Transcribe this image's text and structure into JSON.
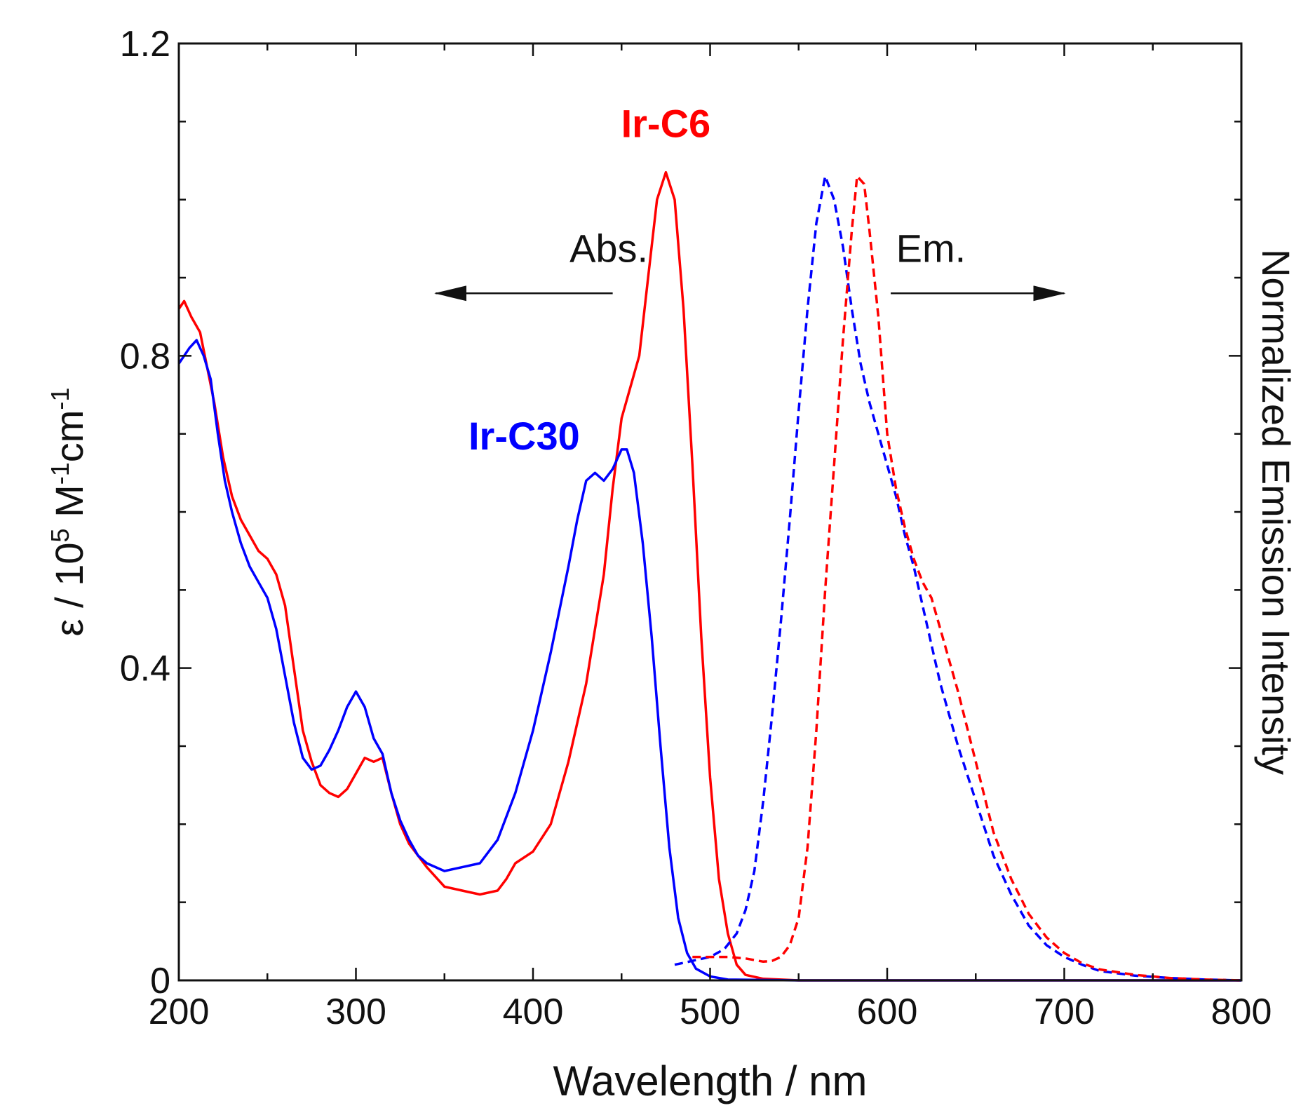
{
  "chart_data": {
    "type": "line",
    "title": "",
    "xlabel": "Wavelength / nm",
    "ylabel_parts": [
      "ε / 10",
      "5",
      " M",
      "-1",
      "cm",
      "-1"
    ],
    "y2label": "Normalized Emission Intensity",
    "xlim": [
      200,
      800
    ],
    "ylim": [
      0,
      1.2
    ],
    "y2lim": [
      0,
      1.2
    ],
    "grid": false,
    "x_ticks": [
      "200",
      "300",
      "400",
      "500",
      "600",
      "700",
      "800"
    ],
    "y_ticks": [
      "0",
      "0.4",
      "0.8",
      "1.2"
    ],
    "annotations": [
      {
        "text": "Abs.",
        "arrow": "left",
        "arrow_from": [
          445,
          0.88
        ],
        "arrow_to": [
          345,
          0.88
        ],
        "text_at": [
          465,
          0.92
        ]
      },
      {
        "text": "Em.",
        "arrow": "right",
        "arrow_from": [
          602,
          0.88
        ],
        "arrow_to": [
          700,
          0.88
        ],
        "text_at": [
          605,
          0.92
        ]
      }
    ],
    "series": [
      {
        "name": "Ir-C6 Abs.",
        "label": "Ir-C6",
        "color": "#ff0000",
        "style": "solid",
        "axis": "left",
        "label_at": [
          475,
          1.08
        ],
        "points": [
          [
            200,
            0.86
          ],
          [
            203,
            0.87
          ],
          [
            207,
            0.85
          ],
          [
            212,
            0.83
          ],
          [
            220,
            0.74
          ],
          [
            225,
            0.67
          ],
          [
            230,
            0.62
          ],
          [
            235,
            0.59
          ],
          [
            240,
            0.57
          ],
          [
            245,
            0.55
          ],
          [
            250,
            0.54
          ],
          [
            255,
            0.52
          ],
          [
            260,
            0.48
          ],
          [
            265,
            0.4
          ],
          [
            270,
            0.32
          ],
          [
            275,
            0.28
          ],
          [
            280,
            0.25
          ],
          [
            285,
            0.24
          ],
          [
            290,
            0.235
          ],
          [
            295,
            0.245
          ],
          [
            300,
            0.265
          ],
          [
            305,
            0.285
          ],
          [
            310,
            0.28
          ],
          [
            315,
            0.285
          ],
          [
            320,
            0.24
          ],
          [
            325,
            0.2
          ],
          [
            330,
            0.175
          ],
          [
            340,
            0.145
          ],
          [
            350,
            0.12
          ],
          [
            360,
            0.115
          ],
          [
            370,
            0.11
          ],
          [
            380,
            0.115
          ],
          [
            385,
            0.13
          ],
          [
            390,
            0.15
          ],
          [
            400,
            0.165
          ],
          [
            410,
            0.2
          ],
          [
            420,
            0.28
          ],
          [
            430,
            0.38
          ],
          [
            440,
            0.52
          ],
          [
            445,
            0.63
          ],
          [
            450,
            0.72
          ],
          [
            455,
            0.76
          ],
          [
            460,
            0.8
          ],
          [
            465,
            0.9
          ],
          [
            470,
            1.0
          ],
          [
            475,
            1.035
          ],
          [
            480,
            1.0
          ],
          [
            485,
            0.86
          ],
          [
            490,
            0.66
          ],
          [
            495,
            0.44
          ],
          [
            500,
            0.26
          ],
          [
            505,
            0.13
          ],
          [
            510,
            0.06
          ],
          [
            515,
            0.02
          ],
          [
            520,
            0.007
          ],
          [
            530,
            0.002
          ],
          [
            550,
            0.0
          ],
          [
            600,
            0.0
          ],
          [
            700,
            0.0
          ],
          [
            800,
            0.0
          ]
        ]
      },
      {
        "name": "Ir-C30 Abs.",
        "label": "Ir-C30",
        "color": "#0000ff",
        "style": "solid",
        "axis": "left",
        "label_at": [
          395,
          0.68
        ],
        "points": [
          [
            200,
            0.79
          ],
          [
            203,
            0.8
          ],
          [
            206,
            0.81
          ],
          [
            210,
            0.82
          ],
          [
            214,
            0.8
          ],
          [
            218,
            0.77
          ],
          [
            222,
            0.7
          ],
          [
            226,
            0.64
          ],
          [
            230,
            0.6
          ],
          [
            235,
            0.56
          ],
          [
            240,
            0.53
          ],
          [
            245,
            0.51
          ],
          [
            250,
            0.49
          ],
          [
            255,
            0.45
          ],
          [
            260,
            0.39
          ],
          [
            265,
            0.33
          ],
          [
            270,
            0.285
          ],
          [
            275,
            0.27
          ],
          [
            280,
            0.275
          ],
          [
            285,
            0.295
          ],
          [
            290,
            0.32
          ],
          [
            295,
            0.35
          ],
          [
            300,
            0.37
          ],
          [
            305,
            0.35
          ],
          [
            310,
            0.31
          ],
          [
            315,
            0.29
          ],
          [
            320,
            0.24
          ],
          [
            325,
            0.205
          ],
          [
            330,
            0.18
          ],
          [
            335,
            0.16
          ],
          [
            340,
            0.15
          ],
          [
            350,
            0.14
          ],
          [
            360,
            0.145
          ],
          [
            370,
            0.15
          ],
          [
            380,
            0.18
          ],
          [
            390,
            0.24
          ],
          [
            400,
            0.32
          ],
          [
            410,
            0.42
          ],
          [
            420,
            0.53
          ],
          [
            425,
            0.59
          ],
          [
            430,
            0.64
          ],
          [
            435,
            0.65
          ],
          [
            440,
            0.64
          ],
          [
            445,
            0.655
          ],
          [
            450,
            0.68
          ],
          [
            453,
            0.68
          ],
          [
            457,
            0.65
          ],
          [
            462,
            0.56
          ],
          [
            467,
            0.44
          ],
          [
            472,
            0.3
          ],
          [
            477,
            0.17
          ],
          [
            482,
            0.08
          ],
          [
            487,
            0.035
          ],
          [
            492,
            0.015
          ],
          [
            500,
            0.005
          ],
          [
            510,
            0.001
          ],
          [
            550,
            0.0
          ],
          [
            600,
            0.0
          ],
          [
            700,
            0.0
          ],
          [
            800,
            0.0
          ]
        ]
      },
      {
        "name": "Ir-C30 Em.",
        "color": "#0000ff",
        "style": "dashed",
        "axis": "right",
        "points": [
          [
            480,
            0.02
          ],
          [
            490,
            0.025
          ],
          [
            500,
            0.03
          ],
          [
            508,
            0.04
          ],
          [
            515,
            0.06
          ],
          [
            520,
            0.09
          ],
          [
            525,
            0.14
          ],
          [
            530,
            0.23
          ],
          [
            535,
            0.34
          ],
          [
            540,
            0.46
          ],
          [
            545,
            0.59
          ],
          [
            550,
            0.73
          ],
          [
            555,
            0.86
          ],
          [
            560,
            0.97
          ],
          [
            565,
            1.03
          ],
          [
            570,
            1.0
          ],
          [
            575,
            0.94
          ],
          [
            580,
            0.86
          ],
          [
            585,
            0.79
          ],
          [
            590,
            0.74
          ],
          [
            595,
            0.7
          ],
          [
            600,
            0.66
          ],
          [
            605,
            0.62
          ],
          [
            610,
            0.57
          ],
          [
            615,
            0.53
          ],
          [
            620,
            0.48
          ],
          [
            625,
            0.43
          ],
          [
            630,
            0.38
          ],
          [
            640,
            0.3
          ],
          [
            650,
            0.23
          ],
          [
            660,
            0.16
          ],
          [
            670,
            0.11
          ],
          [
            680,
            0.07
          ],
          [
            690,
            0.045
          ],
          [
            700,
            0.03
          ],
          [
            710,
            0.02
          ],
          [
            720,
            0.012
          ],
          [
            740,
            0.006
          ],
          [
            760,
            0.003
          ],
          [
            780,
            0.001
          ],
          [
            800,
            0.0
          ]
        ]
      },
      {
        "name": "Ir-C6 Em.",
        "color": "#ff0000",
        "style": "dashed",
        "axis": "right",
        "points": [
          [
            490,
            0.03
          ],
          [
            500,
            0.03
          ],
          [
            510,
            0.03
          ],
          [
            520,
            0.028
          ],
          [
            530,
            0.024
          ],
          [
            535,
            0.025
          ],
          [
            540,
            0.03
          ],
          [
            545,
            0.045
          ],
          [
            550,
            0.08
          ],
          [
            555,
            0.17
          ],
          [
            560,
            0.32
          ],
          [
            565,
            0.5
          ],
          [
            570,
            0.66
          ],
          [
            575,
            0.82
          ],
          [
            580,
            0.96
          ],
          [
            583,
            1.03
          ],
          [
            587,
            1.02
          ],
          [
            590,
            0.96
          ],
          [
            595,
            0.85
          ],
          [
            600,
            0.7
          ],
          [
            605,
            0.63
          ],
          [
            610,
            0.58
          ],
          [
            615,
            0.54
          ],
          [
            620,
            0.51
          ],
          [
            625,
            0.49
          ],
          [
            630,
            0.45
          ],
          [
            640,
            0.37
          ],
          [
            650,
            0.28
          ],
          [
            660,
            0.19
          ],
          [
            670,
            0.13
          ],
          [
            680,
            0.085
          ],
          [
            690,
            0.055
          ],
          [
            700,
            0.035
          ],
          [
            710,
            0.022
          ],
          [
            720,
            0.014
          ],
          [
            740,
            0.007
          ],
          [
            760,
            0.003
          ],
          [
            780,
            0.001
          ],
          [
            800,
            0.0
          ]
        ]
      }
    ]
  }
}
